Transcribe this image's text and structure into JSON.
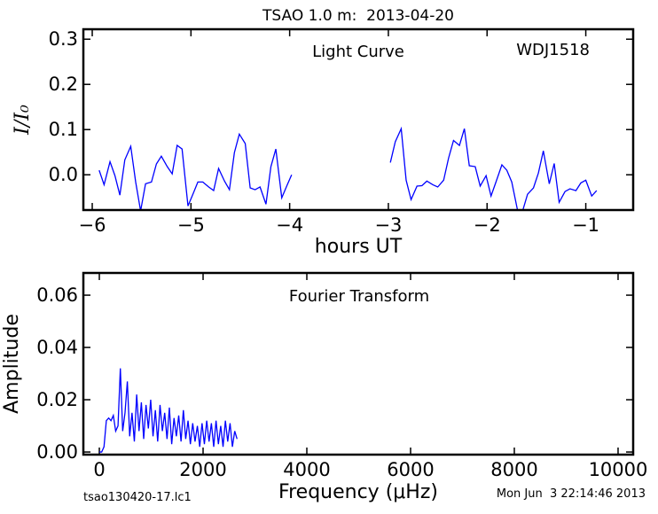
{
  "chart_data": [
    {
      "type": "line",
      "title": "TSAO 1.0 m:  2013-04-20",
      "xlabel": "hours UT",
      "ylabel": "I/I₀",
      "annotations": [
        "Light Curve",
        "WDJ1518"
      ],
      "color": "#0000ff",
      "xlim": [
        -6.09,
        -0.52
      ],
      "ylim": [
        -0.078,
        0.322
      ],
      "xticks": [
        {
          "value": -6,
          "label": "−6"
        },
        {
          "value": -5,
          "label": "−5"
        },
        {
          "value": -4,
          "label": "−4"
        },
        {
          "value": -3,
          "label": "−3"
        },
        {
          "value": -2,
          "label": "−2"
        },
        {
          "value": -1,
          "label": "−1"
        }
      ],
      "yticks": [
        {
          "value": 0,
          "label": "0.0"
        },
        {
          "value": 0.1,
          "label": "0.1"
        },
        {
          "value": 0.2,
          "label": "0.2"
        },
        {
          "value": 0.3,
          "label": "0.3"
        }
      ],
      "x": [
        -5.93,
        -5.88,
        -5.82,
        -5.77,
        -5.72,
        -5.67,
        -5.61,
        -5.56,
        -5.51,
        -5.46,
        -5.4,
        -5.35,
        -5.3,
        -5.24,
        -5.19,
        -5.14,
        -5.09,
        -5.03,
        -4.98,
        -4.93,
        -4.88,
        -4.82,
        -4.77,
        -4.72,
        -4.66,
        -4.61,
        -4.56,
        -4.51,
        -4.45,
        -4.4,
        -4.35,
        -4.3,
        -4.24,
        -4.19,
        -4.14,
        -4.08,
        -4.03,
        -3.98,
        -3.5,
        -2.98,
        -2.93,
        -2.87,
        -2.82,
        -2.77,
        -2.71,
        -2.66,
        -2.61,
        -2.55,
        -2.5,
        -2.44,
        -2.39,
        -2.34,
        -2.28,
        -2.23,
        -2.18,
        -2.12,
        -2.07,
        -2.01,
        -1.96,
        -1.91,
        -1.85,
        -1.8,
        -1.75,
        -1.69,
        -1.64,
        -1.59,
        -1.53,
        -1.48,
        -1.43,
        -1.37,
        -1.32,
        -1.27,
        -1.21,
        -1.16,
        -1.1,
        -1.05,
        -1.0,
        -0.94,
        -0.89
      ],
      "values": [
        0.01,
        -0.022,
        0.029,
        -0.002,
        -0.045,
        0.033,
        0.063,
        -0.016,
        -0.08,
        -0.02,
        -0.016,
        0.024,
        0.041,
        0.018,
        0.002,
        0.065,
        0.057,
        -0.069,
        -0.043,
        -0.016,
        -0.016,
        -0.027,
        -0.035,
        0.014,
        -0.014,
        -0.033,
        0.049,
        0.09,
        0.069,
        -0.029,
        -0.033,
        -0.027,
        -0.065,
        0.018,
        0.057,
        -0.051,
        -0.025,
        0.0,
        null,
        0.027,
        0.073,
        0.102,
        -0.012,
        -0.055,
        -0.025,
        -0.024,
        -0.014,
        -0.022,
        -0.027,
        -0.012,
        0.037,
        0.076,
        0.065,
        0.102,
        0.02,
        0.018,
        -0.025,
        -0.002,
        -0.047,
        -0.016,
        0.022,
        0.01,
        -0.016,
        -0.08,
        -0.08,
        -0.043,
        -0.029,
        0.004,
        0.053,
        -0.02,
        0.025,
        -0.061,
        -0.037,
        -0.031,
        -0.035,
        -0.018,
        -0.012,
        -0.047,
        -0.035
      ]
    },
    {
      "type": "line",
      "xlabel": "Frequency (μHz)",
      "ylabel": "Amplitude",
      "annotations": [
        "Fourier Transform"
      ],
      "color": "#0000ff",
      "xlim": [
        -308,
        10291
      ],
      "ylim": [
        -0.001,
        0.0685
      ],
      "xticks": [
        0,
        2000,
        4000,
        6000,
        8000,
        10000
      ],
      "yticks": [
        {
          "value": 0,
          "label": "0.00"
        },
        {
          "value": 0.02,
          "label": "0.02"
        },
        {
          "value": 0.04,
          "label": "0.04"
        },
        {
          "value": 0.06,
          "label": "0.06"
        }
      ],
      "x": [
        0,
        45,
        90,
        135,
        180,
        225,
        270,
        315,
        360,
        405,
        450,
        495,
        540,
        585,
        630,
        675,
        720,
        765,
        810,
        855,
        900,
        945,
        990,
        1035,
        1080,
        1125,
        1170,
        1215,
        1260,
        1305,
        1350,
        1395,
        1440,
        1485,
        1530,
        1575,
        1620,
        1665,
        1710,
        1755,
        1800,
        1845,
        1890,
        1935,
        1980,
        2025,
        2070,
        2115,
        2160,
        2205,
        2250,
        2295,
        2340,
        2385,
        2430,
        2475,
        2520,
        2565,
        2610,
        2655
      ],
      "values": [
        0.0,
        0.0,
        0.002,
        0.012,
        0.013,
        0.012,
        0.014,
        0.008,
        0.01,
        0.032,
        0.008,
        0.015,
        0.027,
        0.006,
        0.015,
        0.004,
        0.022,
        0.008,
        0.019,
        0.005,
        0.018,
        0.009,
        0.02,
        0.006,
        0.016,
        0.004,
        0.018,
        0.008,
        0.015,
        0.005,
        0.017,
        0.003,
        0.013,
        0.006,
        0.014,
        0.004,
        0.016,
        0.005,
        0.012,
        0.003,
        0.011,
        0.004,
        0.01,
        0.002,
        0.011,
        0.003,
        0.012,
        0.004,
        0.011,
        0.002,
        0.012,
        0.003,
        0.01,
        0.002,
        0.012,
        0.004,
        0.011,
        0.002,
        0.008,
        0.005
      ]
    }
  ],
  "footer": [
    "tsao130420-17.lc1",
    "Mon Jun  3 22:14:46 2013"
  ]
}
